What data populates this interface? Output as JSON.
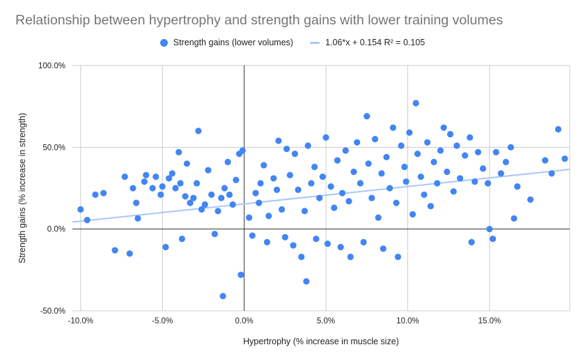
{
  "chart_data": {
    "type": "scatter",
    "title": "Relationship between hypertrophy and strength gains with lower training volumes",
    "xlabel": "Hypertrophy (% increase in muscle size)",
    "ylabel": "Strength gains (% increase in strength)",
    "xlim": [
      -10.5,
      19.9
    ],
    "ylim": [
      -50,
      100
    ],
    "x_ticks": [
      -10,
      -5,
      0,
      5,
      10,
      15
    ],
    "x_tick_labels": [
      "-10.0%",
      "-5.0%",
      "0.0%",
      "5.0%",
      "10.0%",
      "15.0%"
    ],
    "y_ticks": [
      -50,
      0,
      50,
      100
    ],
    "y_tick_labels": [
      "-50.0%",
      "0.0%",
      "50.0%",
      "100.0%"
    ],
    "grid": true,
    "legend_position": "top",
    "colors": {
      "points": "#4285f4",
      "trendline": "#a8c7fa",
      "grid": "#cccccc",
      "zero_axis": "#333333",
      "title": "#757575"
    },
    "series": [
      {
        "name": "Strength gains (lower volumes)",
        "points": [
          [
            -10.0,
            12
          ],
          [
            -9.6,
            5.5
          ],
          [
            -9.1,
            21
          ],
          [
            -8.6,
            22
          ],
          [
            -7.9,
            -13
          ],
          [
            -7.3,
            32
          ],
          [
            -7.0,
            -15
          ],
          [
            -6.8,
            25
          ],
          [
            -6.6,
            16
          ],
          [
            -6.5,
            6.5
          ],
          [
            -6.1,
            29
          ],
          [
            -6.0,
            33
          ],
          [
            -5.6,
            25
          ],
          [
            -5.4,
            32
          ],
          [
            -5.1,
            21
          ],
          [
            -5.0,
            26
          ],
          [
            -4.8,
            -11
          ],
          [
            -4.6,
            31
          ],
          [
            -4.4,
            34
          ],
          [
            -4.2,
            25
          ],
          [
            -4.0,
            47
          ],
          [
            -3.9,
            28
          ],
          [
            -3.8,
            -6
          ],
          [
            -3.6,
            20
          ],
          [
            -3.5,
            40
          ],
          [
            -3.3,
            16
          ],
          [
            -3.1,
            19
          ],
          [
            -2.9,
            28
          ],
          [
            -2.8,
            60
          ],
          [
            -2.6,
            12
          ],
          [
            -2.4,
            15
          ],
          [
            -2.2,
            36
          ],
          [
            -2.0,
            21
          ],
          [
            -1.8,
            -3
          ],
          [
            -1.6,
            11
          ],
          [
            -1.4,
            19
          ],
          [
            -1.3,
            -41
          ],
          [
            -1.2,
            25
          ],
          [
            -1.0,
            41
          ],
          [
            -0.9,
            21
          ],
          [
            -0.7,
            15
          ],
          [
            -0.5,
            30
          ],
          [
            -0.3,
            46
          ],
          [
            -0.2,
            -28
          ],
          [
            -0.1,
            48
          ],
          [
            0.3,
            7
          ],
          [
            0.5,
            -4
          ],
          [
            0.7,
            22
          ],
          [
            0.9,
            16
          ],
          [
            1.0,
            28
          ],
          [
            1.2,
            39
          ],
          [
            1.4,
            -8
          ],
          [
            1.5,
            8
          ],
          [
            1.8,
            31
          ],
          [
            2.0,
            24
          ],
          [
            2.1,
            54
          ],
          [
            2.3,
            12
          ],
          [
            2.5,
            -5
          ],
          [
            2.6,
            49
          ],
          [
            2.8,
            33
          ],
          [
            3.0,
            -10
          ],
          [
            3.1,
            46
          ],
          [
            3.3,
            24
          ],
          [
            3.5,
            -17
          ],
          [
            3.7,
            11
          ],
          [
            3.8,
            -32
          ],
          [
            3.9,
            51
          ],
          [
            4.1,
            28
          ],
          [
            4.3,
            38
          ],
          [
            4.4,
            -6
          ],
          [
            4.6,
            19
          ],
          [
            4.8,
            32
          ],
          [
            5.0,
            56
          ],
          [
            5.1,
            -9
          ],
          [
            5.3,
            26
          ],
          [
            5.5,
            13
          ],
          [
            5.7,
            42
          ],
          [
            5.9,
            -11
          ],
          [
            6.0,
            22
          ],
          [
            6.2,
            48
          ],
          [
            6.4,
            17
          ],
          [
            6.5,
            -17
          ],
          [
            6.7,
            35
          ],
          [
            6.9,
            53
          ],
          [
            7.1,
            28
          ],
          [
            7.3,
            -8
          ],
          [
            7.5,
            69
          ],
          [
            7.6,
            40
          ],
          [
            7.8,
            19
          ],
          [
            8.0,
            55
          ],
          [
            8.2,
            7
          ],
          [
            8.4,
            34
          ],
          [
            8.5,
            -12
          ],
          [
            8.7,
            44
          ],
          [
            8.9,
            25
          ],
          [
            9.1,
            62
          ],
          [
            9.3,
            16
          ],
          [
            9.4,
            -17
          ],
          [
            9.6,
            51
          ],
          [
            9.8,
            38
          ],
          [
            9.9,
            29
          ],
          [
            10.1,
            59
          ],
          [
            10.3,
            9
          ],
          [
            10.5,
            77
          ],
          [
            10.6,
            46
          ],
          [
            10.8,
            32
          ],
          [
            11.0,
            21
          ],
          [
            11.2,
            53
          ],
          [
            11.4,
            14
          ],
          [
            11.6,
            41
          ],
          [
            11.8,
            28
          ],
          [
            12.0,
            48
          ],
          [
            12.2,
            62
          ],
          [
            12.4,
            35
          ],
          [
            12.6,
            58
          ],
          [
            12.8,
            23
          ],
          [
            13.0,
            51
          ],
          [
            13.2,
            31
          ],
          [
            13.5,
            45
          ],
          [
            13.8,
            56
          ],
          [
            13.9,
            -8
          ],
          [
            14.1,
            29
          ],
          [
            14.3,
            47
          ],
          [
            14.6,
            37
          ],
          [
            14.9,
            28
          ],
          [
            15.0,
            0
          ],
          [
            15.2,
            -6
          ],
          [
            15.4,
            47
          ],
          [
            15.7,
            34
          ],
          [
            16.0,
            41
          ],
          [
            16.3,
            50
          ],
          [
            16.5,
            6.5
          ],
          [
            16.7,
            26
          ],
          [
            17.5,
            18
          ],
          [
            18.4,
            42
          ],
          [
            18.8,
            34
          ],
          [
            19.2,
            61
          ],
          [
            19.6,
            43
          ]
        ]
      },
      {
        "name": "1.06*x + 0.154 R² = 0.105",
        "type": "trendline",
        "slope": 1.06,
        "intercept": 15.4
      }
    ]
  },
  "legend": {
    "items": [
      {
        "label": "Strength gains (lower volumes)"
      },
      {
        "label": "1.06*x + 0.154 R² = 0.105"
      }
    ]
  }
}
